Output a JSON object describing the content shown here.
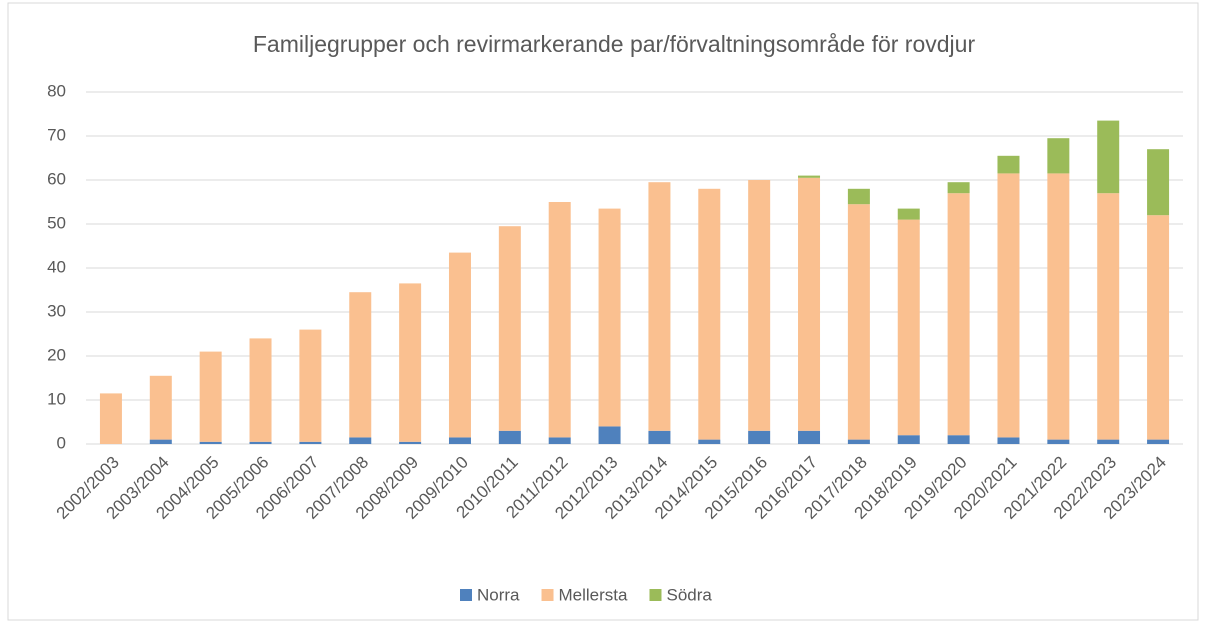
{
  "chart_data": {
    "type": "stacked_bar",
    "title": "Familjegrupper och revirmarkerande par/förvaltningsområde för rovdjur",
    "categories": [
      "2002/2003",
      "2003/2004",
      "2004/2005",
      "2005/2006",
      "2006/2007",
      "2007/2008",
      "2008/2009",
      "2009/2010",
      "2010/2011",
      "2011/2012",
      "2012/2013",
      "2013/2014",
      "2014/2015",
      "2015/2016",
      "2016/2017",
      "2017/2018",
      "2018/2019",
      "2019/2020",
      "2020/2021",
      "2021/2022",
      "2022/2023",
      "2023/2024"
    ],
    "series": [
      {
        "name": "Norra",
        "color": "#4f81bd",
        "values": [
          0,
          1,
          0.5,
          0.5,
          0.5,
          1.5,
          0.5,
          1.5,
          3,
          1.5,
          4,
          3,
          1,
          3,
          3,
          1,
          2,
          2,
          1.5,
          1,
          1,
          1
        ]
      },
      {
        "name": "Mellersta",
        "color": "#fac090",
        "values": [
          11.5,
          14.5,
          20.5,
          23.5,
          25.5,
          33,
          36,
          42,
          46.5,
          53.5,
          49.5,
          56.5,
          57,
          57,
          57.5,
          53.5,
          49,
          55,
          60,
          60.5,
          56,
          51
        ]
      },
      {
        "name": "Södra",
        "color": "#9bbb59",
        "values": [
          0,
          0,
          0,
          0,
          0,
          0,
          0,
          0,
          0,
          0,
          0,
          0,
          0,
          0,
          0.5,
          3.5,
          2.5,
          2.5,
          4,
          8,
          16.5,
          15
        ]
      }
    ],
    "ylim": [
      0,
      80
    ],
    "yticks": [
      0,
      10,
      20,
      30,
      40,
      50,
      60,
      70,
      80
    ],
    "grid": true,
    "legend": "bottom"
  }
}
